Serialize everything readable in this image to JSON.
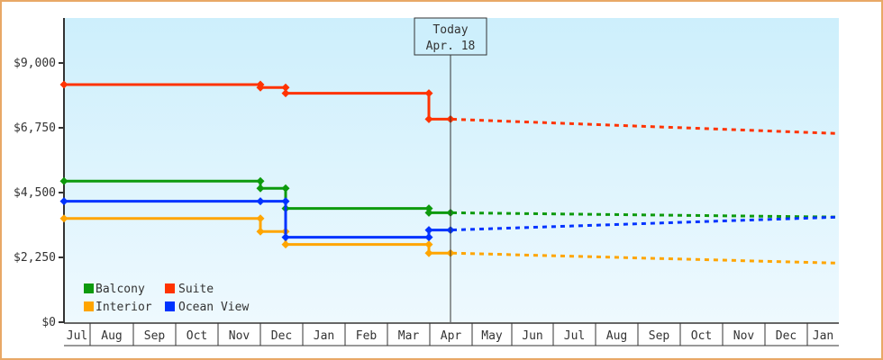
{
  "chart_data": {
    "type": "line",
    "title": "",
    "xlabel": "",
    "ylabel": "",
    "ylim": [
      0,
      10000
    ],
    "grid": false,
    "legend_position": "lower-left inside plot",
    "y_ticks": [
      {
        "value": 0,
        "label": "$0"
      },
      {
        "value": 2250,
        "label": "$2,250"
      },
      {
        "value": 4500,
        "label": "$4,500"
      },
      {
        "value": 6750,
        "label": "$6,750"
      },
      {
        "value": 9000,
        "label": "$9,000"
      }
    ],
    "x_month_labels": [
      "Jul",
      "Aug",
      "Sep",
      "Oct",
      "Nov",
      "Dec",
      "Jan",
      "Feb",
      "Mar",
      "Apr",
      "May",
      "Jun",
      "Jul",
      "Aug",
      "Sep",
      "Oct",
      "Nov",
      "Dec",
      "Jan"
    ],
    "today_marker": {
      "line1": "Today",
      "line2": "Apr. 18"
    },
    "step_points_x": [
      "Jul start",
      "Nov 22",
      "Dec 2",
      "Mar 28",
      "Apr 18 (today)"
    ],
    "forecast_end_x": "Jan end",
    "series": [
      {
        "name": "Balcony",
        "color": "#0d9a0d",
        "historical": [
          {
            "x": "Jul 1",
            "y": 4900
          },
          {
            "x": "Nov 22",
            "y": 4900
          },
          {
            "x": "Nov 22",
            "y": 4650
          },
          {
            "x": "Dec 2",
            "y": 4650
          },
          {
            "x": "Dec 2",
            "y": 3950
          },
          {
            "x": "Mar 28",
            "y": 3950
          },
          {
            "x": "Mar 28",
            "y": 3800
          },
          {
            "x": "Apr 18",
            "y": 3800
          }
        ],
        "forecast": [
          {
            "x": "Apr 18",
            "y": 3800
          },
          {
            "x": "Jan end",
            "y": 3650
          }
        ]
      },
      {
        "name": "Suite",
        "color": "#ff3300",
        "historical": [
          {
            "x": "Jul 1",
            "y": 8250
          },
          {
            "x": "Nov 22",
            "y": 8250
          },
          {
            "x": "Nov 22",
            "y": 8150
          },
          {
            "x": "Dec 2",
            "y": 8150
          },
          {
            "x": "Dec 2",
            "y": 7950
          },
          {
            "x": "Mar 28",
            "y": 7950
          },
          {
            "x": "Mar 28",
            "y": 7050
          },
          {
            "x": "Apr 18",
            "y": 7050
          }
        ],
        "forecast": [
          {
            "x": "Apr 18",
            "y": 7050
          },
          {
            "x": "Jan end",
            "y": 6550
          }
        ]
      },
      {
        "name": "Interior",
        "color": "#ffa500",
        "historical": [
          {
            "x": "Jul 1",
            "y": 3600
          },
          {
            "x": "Nov 22",
            "y": 3600
          },
          {
            "x": "Nov 22",
            "y": 3150
          },
          {
            "x": "Dec 2",
            "y": 3150
          },
          {
            "x": "Dec 2",
            "y": 2700
          },
          {
            "x": "Mar 28",
            "y": 2700
          },
          {
            "x": "Mar 28",
            "y": 2400
          },
          {
            "x": "Apr 18",
            "y": 2400
          }
        ],
        "forecast": [
          {
            "x": "Apr 18",
            "y": 2400
          },
          {
            "x": "Jan end",
            "y": 2050
          }
        ]
      },
      {
        "name": "Ocean View",
        "color": "#0033ff",
        "historical": [
          {
            "x": "Jul 1",
            "y": 4200
          },
          {
            "x": "Nov 22",
            "y": 4200
          },
          {
            "x": "Dec 2",
            "y": 4200
          },
          {
            "x": "Dec 2",
            "y": 2950
          },
          {
            "x": "Mar 28",
            "y": 2950
          },
          {
            "x": "Mar 28",
            "y": 3200
          },
          {
            "x": "Apr 18",
            "y": 3200
          }
        ],
        "forecast": [
          {
            "x": "Apr 18",
            "y": 3200
          },
          {
            "x": "Jan end",
            "y": 3650
          }
        ]
      }
    ]
  },
  "legend": {
    "items": [
      {
        "label": "Balcony",
        "color": "#0d9a0d"
      },
      {
        "label": "Suite",
        "color": "#ff3300"
      },
      {
        "label": "Interior",
        "color": "#ffa500"
      },
      {
        "label": "Ocean View",
        "color": "#0033ff"
      }
    ]
  },
  "colors": {
    "frame_border": "#e8a866",
    "plot_bg_top": "#cdeffc",
    "plot_bg_bottom": "#eef9fe",
    "axis": "#333333"
  }
}
